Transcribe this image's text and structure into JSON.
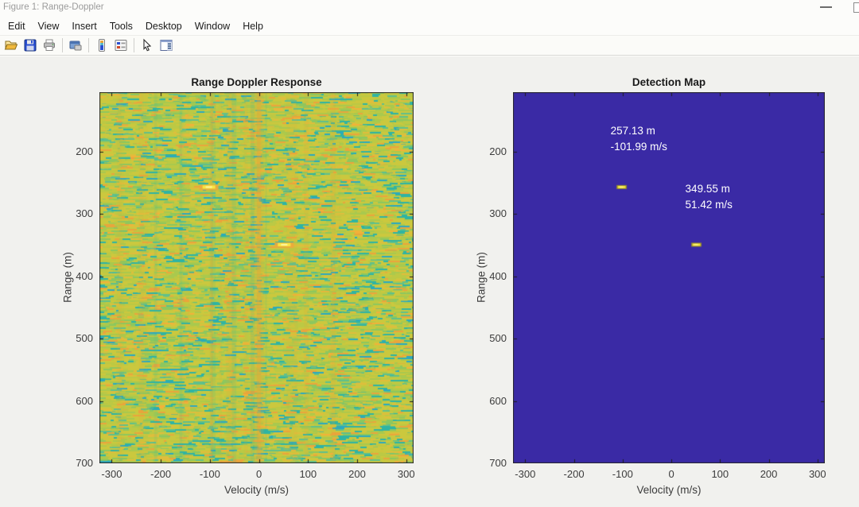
{
  "window": {
    "title": "Figure 1: Range-Doppler"
  },
  "menu": {
    "items": [
      "Edit",
      "View",
      "Insert",
      "Tools",
      "Desktop",
      "Window",
      "Help"
    ]
  },
  "toolbar": {
    "buttons": [
      {
        "name": "open",
        "icon": "open-folder-icon"
      },
      {
        "name": "save",
        "icon": "save-floppy-icon"
      },
      {
        "name": "print",
        "icon": "printer-icon"
      },
      {
        "name": "copy-figure",
        "icon": "copy-figure-icon"
      },
      {
        "name": "insert-colorbar",
        "icon": "colorbar-icon"
      },
      {
        "name": "insert-legend",
        "icon": "legend-icon"
      },
      {
        "name": "edit-plot",
        "icon": "cursor-arrow-icon"
      },
      {
        "name": "property-inspector",
        "icon": "property-inspector-icon"
      }
    ]
  },
  "chart_data": [
    {
      "type": "heatmap",
      "title": "Range Doppler Response",
      "xlabel": "Velocity (m/s)",
      "ylabel": "Range (m)",
      "xlim": [
        -325,
        315
      ],
      "ylim": [
        105,
        700
      ],
      "xticks": [
        -300,
        -200,
        -100,
        0,
        100,
        200,
        300
      ],
      "yticks": [
        200,
        300,
        400,
        500,
        600,
        700
      ],
      "colormap": "parula",
      "content": "speckled clutter noise, mostly yellow-green with teal and orange flecks, a bright orange vertical clutter ridge at 0 m/s, and two bright target returns",
      "palette": [
        {
          "color": "#cbc83e",
          "w": 0.3
        },
        {
          "color": "#bcc944",
          "w": 0.2
        },
        {
          "color": "#a9c94e",
          "w": 0.13
        },
        {
          "color": "#8cc75f",
          "w": 0.09
        },
        {
          "color": "#5fc08c",
          "w": 0.05
        },
        {
          "color": "#2fb4a3",
          "w": 0.08
        },
        {
          "color": "#2aa9c0",
          "w": 0.02
        },
        {
          "color": "#dfbe3c",
          "w": 0.07
        },
        {
          "color": "#eaa53c",
          "w": 0.05
        },
        {
          "color": "#f2b239",
          "w": 0.01
        }
      ],
      "zero_band_color": "#eaa337",
      "targets": [
        {
          "range_m": 257.13,
          "velocity_mps": -101.99
        },
        {
          "range_m": 349.55,
          "velocity_mps": 51.42
        }
      ]
    },
    {
      "type": "heatmap",
      "title": "Detection Map",
      "xlabel": "Velocity (m/s)",
      "ylabel": "Range (m)",
      "xlim": [
        -325,
        315
      ],
      "ylim": [
        105,
        700
      ],
      "xticks": [
        -300,
        -200,
        -100,
        0,
        100,
        200,
        300
      ],
      "yticks": [
        200,
        300,
        400,
        500,
        600,
        700
      ],
      "background": "#3a2aa5",
      "marker_color": "#f2e53c",
      "annotation_color": "#ffffff",
      "detections": [
        {
          "range_m": 257.13,
          "velocity_mps": -101.99,
          "label": [
            "257.13 m",
            "-101.99 m/s"
          ]
        },
        {
          "range_m": 349.55,
          "velocity_mps": 51.42,
          "label": [
            "349.55 m",
            "51.42 m/s"
          ]
        }
      ]
    }
  ],
  "colors": {
    "chrome_bg": "#fcfcfa",
    "figure_bg": "#f1f1ee",
    "axis_text": "#3c3c3c",
    "title_text": "#1a1a1a",
    "window_title_text": "#9b9b9b",
    "annotation_text": "#ffffff",
    "detection_bg": "#3a2aa5",
    "detection_marker": "#f2e53c"
  }
}
